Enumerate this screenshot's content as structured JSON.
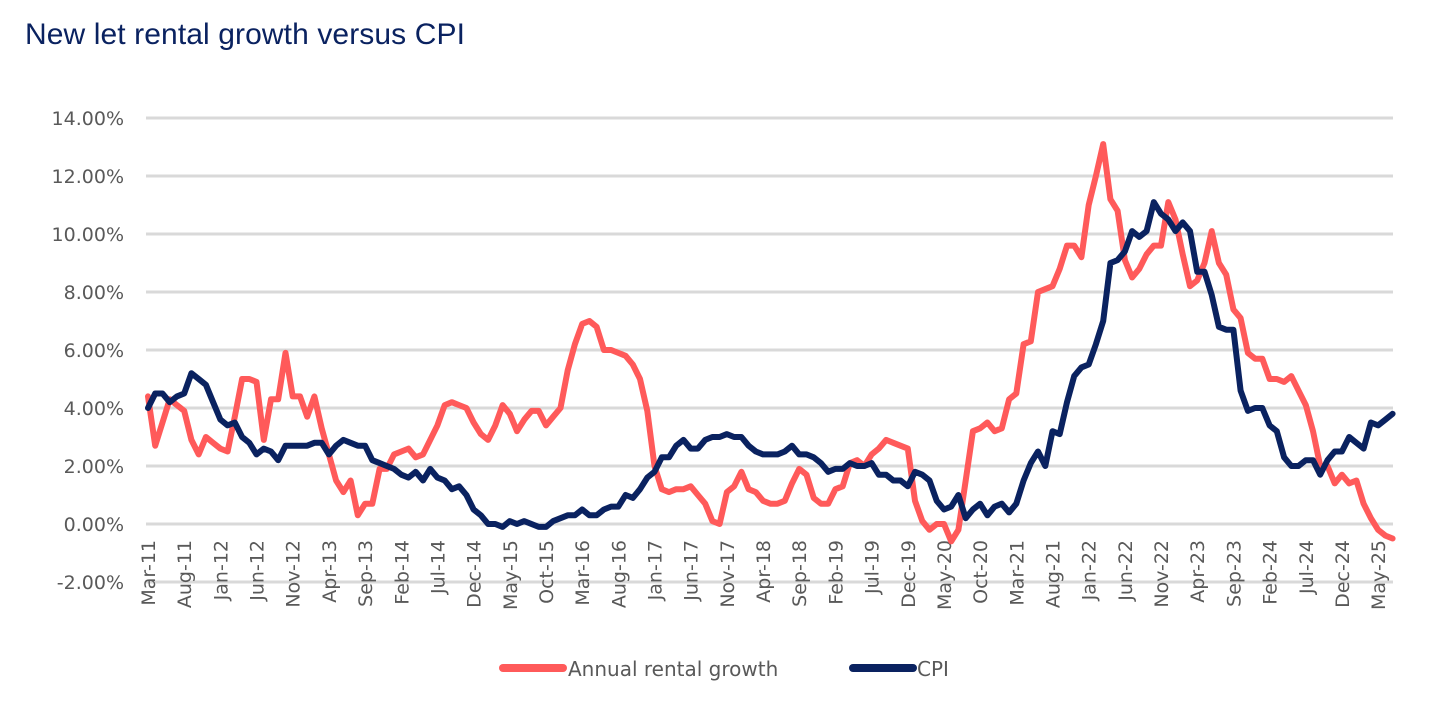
{
  "chart_data": {
    "type": "line",
    "title": "New let rental growth versus CPI",
    "xlabel": "",
    "ylabel": "",
    "ylim": [
      -2,
      14
    ],
    "yticks": [
      "-2.00%",
      "0.00%",
      "2.00%",
      "4.00%",
      "6.00%",
      "8.00%",
      "10.00%",
      "12.00%",
      "14.00%"
    ],
    "ytick_values": [
      -2,
      0,
      2,
      4,
      6,
      8,
      10,
      12,
      14
    ],
    "grid": "horizontal",
    "legend_position": "bottom-center",
    "x_start": "Mar-11",
    "x_end": "Jul-25",
    "x_frequency": "monthly",
    "x_tick_labels": [
      "Mar-11",
      "Aug-11",
      "Jan-12",
      "Jun-12",
      "Nov-12",
      "Apr-13",
      "Sep-13",
      "Feb-14",
      "Jul-14",
      "Dec-14",
      "May-15",
      "Oct-15",
      "Mar-16",
      "Aug-16",
      "Jan-17",
      "Jun-17",
      "Nov-17",
      "Apr-18",
      "Sep-18",
      "Feb-19",
      "Jul-19",
      "Dec-19",
      "May-20",
      "Oct-20",
      "Mar-21",
      "Aug-21",
      "Jan-22",
      "Jun-22",
      "Nov-22",
      "Apr-23",
      "Sep-23",
      "Feb-24",
      "Jul-24",
      "Dec-24",
      "May-25"
    ],
    "series": [
      {
        "name": "Annual rental growth",
        "color": "#ff5a5a",
        "values": [
          4.4,
          2.7,
          3.5,
          4.3,
          4.1,
          3.9,
          2.9,
          2.4,
          3.0,
          2.8,
          2.6,
          2.5,
          3.7,
          5.0,
          5.0,
          4.9,
          2.9,
          4.3,
          4.3,
          5.9,
          4.4,
          4.4,
          3.7,
          4.4,
          3.3,
          2.4,
          1.5,
          1.1,
          1.5,
          0.3,
          0.7,
          0.7,
          1.9,
          1.9,
          2.4,
          2.5,
          2.6,
          2.3,
          2.4,
          2.9,
          3.4,
          4.1,
          4.2,
          4.1,
          4.0,
          3.5,
          3.1,
          2.9,
          3.4,
          4.1,
          3.8,
          3.2,
          3.6,
          3.9,
          3.9,
          3.4,
          3.7,
          4.0,
          5.3,
          6.2,
          6.9,
          7.0,
          6.8,
          6.0,
          6.0,
          5.9,
          5.8,
          5.5,
          5.0,
          3.9,
          2.0,
          1.2,
          1.1,
          1.2,
          1.2,
          1.3,
          1.0,
          0.7,
          0.1,
          0.0,
          1.1,
          1.3,
          1.8,
          1.2,
          1.1,
          0.8,
          0.7,
          0.7,
          0.8,
          1.4,
          1.9,
          1.7,
          0.9,
          0.7,
          0.7,
          1.2,
          1.3,
          2.1,
          2.2,
          2.0,
          2.4,
          2.6,
          2.9,
          2.8,
          2.7,
          2.6,
          0.8,
          0.1,
          -0.2,
          0.0,
          0.0,
          -0.6,
          -0.2,
          1.5,
          3.2,
          3.3,
          3.5,
          3.2,
          3.3,
          4.3,
          4.5,
          6.2,
          6.3,
          8.0,
          8.1,
          8.2,
          8.8,
          9.6,
          9.6,
          9.2,
          11.0,
          12.0,
          13.1,
          11.2,
          10.8,
          9.1,
          8.5,
          8.8,
          9.3,
          9.6,
          9.6,
          11.1,
          10.5,
          9.3,
          8.2,
          8.4,
          9.0,
          10.1,
          9.0,
          8.6,
          7.4,
          7.1,
          5.9,
          5.7,
          5.7,
          5.0,
          5.0,
          4.9,
          5.1,
          4.6,
          4.1,
          3.2,
          2.0,
          2.0,
          1.4,
          1.7,
          1.4,
          1.5,
          0.7,
          0.2,
          -0.2,
          -0.4,
          -0.5
        ]
      },
      {
        "name": "CPI",
        "color": "#0a2260",
        "values": [
          4.0,
          4.5,
          4.5,
          4.2,
          4.4,
          4.5,
          5.2,
          5.0,
          4.8,
          4.2,
          3.6,
          3.4,
          3.5,
          3.0,
          2.8,
          2.4,
          2.6,
          2.5,
          2.2,
          2.7,
          2.7,
          2.7,
          2.7,
          2.8,
          2.8,
          2.4,
          2.7,
          2.9,
          2.8,
          2.7,
          2.7,
          2.2,
          2.1,
          2.0,
          1.9,
          1.7,
          1.6,
          1.8,
          1.5,
          1.9,
          1.6,
          1.5,
          1.2,
          1.3,
          1.0,
          0.5,
          0.3,
          0.0,
          0.0,
          -0.1,
          0.1,
          0.0,
          0.1,
          0.0,
          -0.1,
          -0.1,
          0.1,
          0.2,
          0.3,
          0.3,
          0.5,
          0.3,
          0.3,
          0.5,
          0.6,
          0.6,
          1.0,
          0.9,
          1.2,
          1.6,
          1.8,
          2.3,
          2.3,
          2.7,
          2.9,
          2.6,
          2.6,
          2.9,
          3.0,
          3.0,
          3.1,
          3.0,
          3.0,
          2.7,
          2.5,
          2.4,
          2.4,
          2.4,
          2.5,
          2.7,
          2.4,
          2.4,
          2.3,
          2.1,
          1.8,
          1.9,
          1.9,
          2.1,
          2.0,
          2.0,
          2.1,
          1.7,
          1.7,
          1.5,
          1.5,
          1.3,
          1.8,
          1.7,
          1.5,
          0.8,
          0.5,
          0.6,
          1.0,
          0.2,
          0.5,
          0.7,
          0.3,
          0.6,
          0.7,
          0.4,
          0.7,
          1.5,
          2.1,
          2.5,
          2.0,
          3.2,
          3.1,
          4.2,
          5.1,
          5.4,
          5.5,
          6.2,
          7.0,
          9.0,
          9.1,
          9.4,
          10.1,
          9.9,
          10.1,
          11.1,
          10.7,
          10.5,
          10.1,
          10.4,
          10.1,
          8.7,
          8.7,
          7.9,
          6.8,
          6.7,
          6.7,
          4.6,
          3.9,
          4.0,
          4.0,
          3.4,
          3.2,
          2.3,
          2.0,
          2.0,
          2.2,
          2.2,
          1.7,
          2.2,
          2.5,
          2.5,
          3.0,
          2.8,
          2.6,
          3.5,
          3.4,
          3.6,
          3.8
        ]
      }
    ]
  }
}
